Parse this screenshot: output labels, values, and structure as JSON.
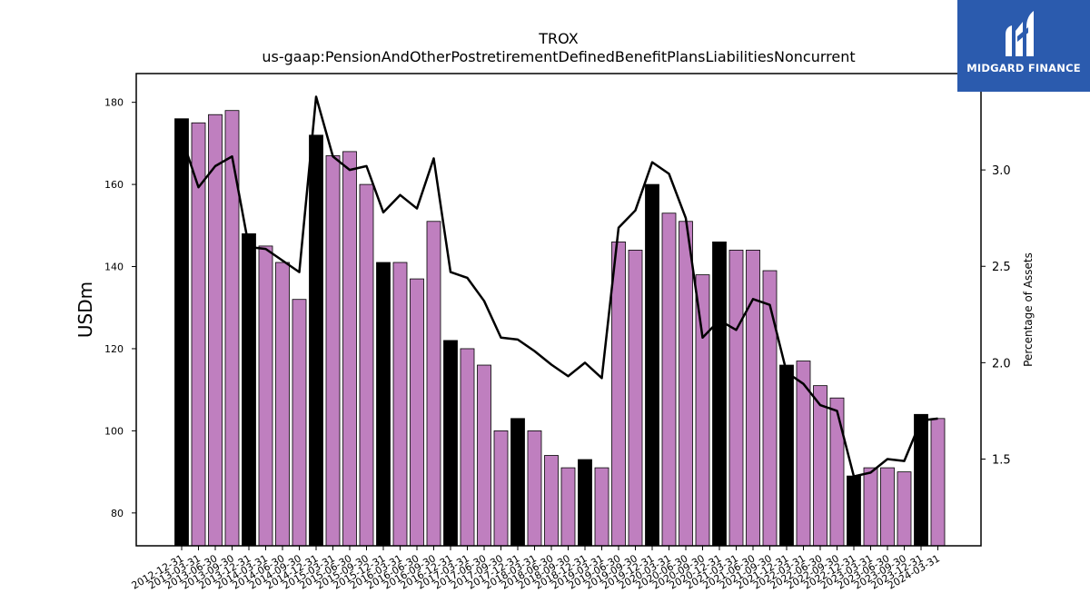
{
  "chart_data": {
    "type": "bar",
    "title": "TROX",
    "subtitle": "us-gaap:PensionAndOtherPostretirementDefinedBenefitPlansLiabilitiesNoncurrent",
    "ylabel": "USDm",
    "ylabel_right": "Percentage of Assets",
    "ylim": [
      72,
      187
    ],
    "ylim_right": [
      1.05,
      3.5
    ],
    "yticks": [
      80,
      100,
      120,
      140,
      160,
      180
    ],
    "yticks_right": [
      "1.5",
      "2.0",
      "2.5",
      "3.0"
    ],
    "grid": false,
    "categories": [
      "2012-12-31",
      "2013-03-31",
      "2013-06-30",
      "2013-09-30",
      "2013-12-31",
      "2014-03-31",
      "2014-06-30",
      "2014-09-30",
      "2014-12-31",
      "2015-03-31",
      "2015-06-30",
      "2015-09-30",
      "2015-12-31",
      "2016-03-31",
      "2016-06-30",
      "2016-09-30",
      "2016-12-31",
      "2017-03-31",
      "2017-06-30",
      "2017-09-30",
      "2017-12-31",
      "2018-03-31",
      "2018-06-30",
      "2018-09-30",
      "2018-12-31",
      "2019-03-31",
      "2019-06-30",
      "2019-09-30",
      "2019-12-31",
      "2020-03-31",
      "2020-06-30",
      "2020-09-30",
      "2020-12-31",
      "2021-03-31",
      "2021-06-30",
      "2021-09-30",
      "2021-12-31",
      "2022-03-31",
      "2022-06-30",
      "2022-09-30",
      "2022-12-31",
      "2023-03-31",
      "2023-06-30",
      "2023-09-30",
      "2023-12-31",
      "2024-03-31"
    ],
    "series": [
      {
        "type": "bar",
        "values": [
          176,
          175,
          177,
          178,
          148,
          145,
          141,
          132,
          172,
          167,
          168,
          160,
          141,
          141,
          137,
          151,
          122,
          120,
          116,
          100,
          103,
          100,
          94,
          91,
          93,
          91,
          146,
          144,
          160,
          153,
          151,
          138,
          146,
          144,
          144,
          139,
          116,
          117,
          111,
          108,
          89,
          91,
          91,
          90,
          104,
          103
        ],
        "colors": {
          "q4": "#000000",
          "other": "#bf7fbf"
        }
      },
      {
        "type": "line",
        "axis": "right",
        "values": [
          3.17,
          2.91,
          3.02,
          3.07,
          2.6,
          2.59,
          2.53,
          2.47,
          3.38,
          3.07,
          3.0,
          3.02,
          2.78,
          2.87,
          2.8,
          3.06,
          2.47,
          2.44,
          2.32,
          2.13,
          2.12,
          2.06,
          1.99,
          1.93,
          2.0,
          1.92,
          2.7,
          2.79,
          3.04,
          2.98,
          2.75,
          2.13,
          2.22,
          2.17,
          2.33,
          2.3,
          1.95,
          1.89,
          1.78,
          1.75,
          1.41,
          1.43,
          1.5,
          1.49,
          1.7,
          1.71
        ],
        "color": "#000000"
      }
    ]
  },
  "branding": {
    "logo_text": "MIDGARD FINANCE",
    "background": "#2b5bae"
  }
}
